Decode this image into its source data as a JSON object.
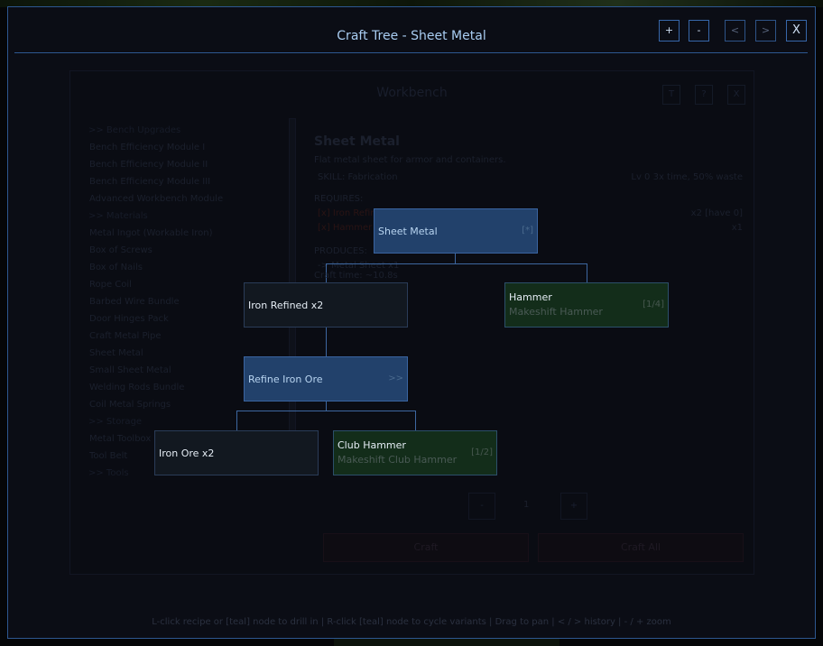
{
  "window": {
    "title": "Craft Tree  -  Sheet Metal",
    "buttons": {
      "zoom_in": "+",
      "zoom_out": "-",
      "back": "<",
      "forward": ">",
      "close": "X"
    }
  },
  "background_panel": {
    "title": "Workbench",
    "buttons": [
      "T",
      "?",
      "X"
    ],
    "list": [
      ">> Bench Upgrades",
      "Bench Efficiency Module I",
      "Bench Efficiency Module II",
      "Bench Efficiency Module III",
      "Advanced Workbench Module",
      ">> Materials",
      "Metal Ingot (Workable Iron)",
      "Box of Screws",
      "Box of Nails",
      "Rope Coil",
      "Barbed Wire Bundle",
      "Door Hinges Pack",
      "Craft Metal Pipe",
      "Sheet Metal",
      "Small Sheet Metal",
      "Welding Rods Bundle",
      "Coil Metal Springs",
      ">> Storage",
      "Metal Toolbox",
      "Tool Belt",
      ">> Tools"
    ],
    "detail": {
      "name": "Sheet Metal",
      "description": "Flat metal sheet for armor and containers.",
      "skill": "SKILL: Fabrication",
      "skill_info": "Lv 0  3x time, 50% waste",
      "requires_label": "REQUIRES:",
      "requires": [
        {
          "name": "[x] Iron Refined",
          "qty": "x2  [have 0]"
        },
        {
          "name": "[x] Hammer",
          "qty": "x1"
        }
      ],
      "produces_label": "PRODUCES:",
      "produces": "-> Metal Sheet  x1",
      "craft_time": "Craft time: ~10.8s",
      "qty_minus": "-",
      "qty": "1",
      "qty_plus": "+",
      "craft": "Craft",
      "craft_all": "Craft All"
    }
  },
  "tree": {
    "root": {
      "name": "Sheet Metal",
      "tag": "[*]"
    },
    "iron_refined": {
      "name": "Iron Refined x2"
    },
    "hammer": {
      "name": "Hammer",
      "variant": "Makeshift Hammer",
      "tag": "[1/4]"
    },
    "refine": {
      "name": "Refine Iron Ore",
      "tag": ">>"
    },
    "iron_ore": {
      "name": "Iron Ore x2"
    },
    "club_hammer": {
      "name": "Club Hammer",
      "variant": "Makeshift Club Hammer",
      "tag": "[1/2]"
    }
  },
  "footer": "L-click recipe or [teal] node to drill in  |  R-click [teal] node to cycle variants  |  Drag to pan  |  < / > history  |  - / + zoom",
  "colors": {
    "accent": "#2d5790",
    "recipe_node": "#22416b",
    "item_node": "#121820",
    "variant_node": "#132d1a"
  }
}
